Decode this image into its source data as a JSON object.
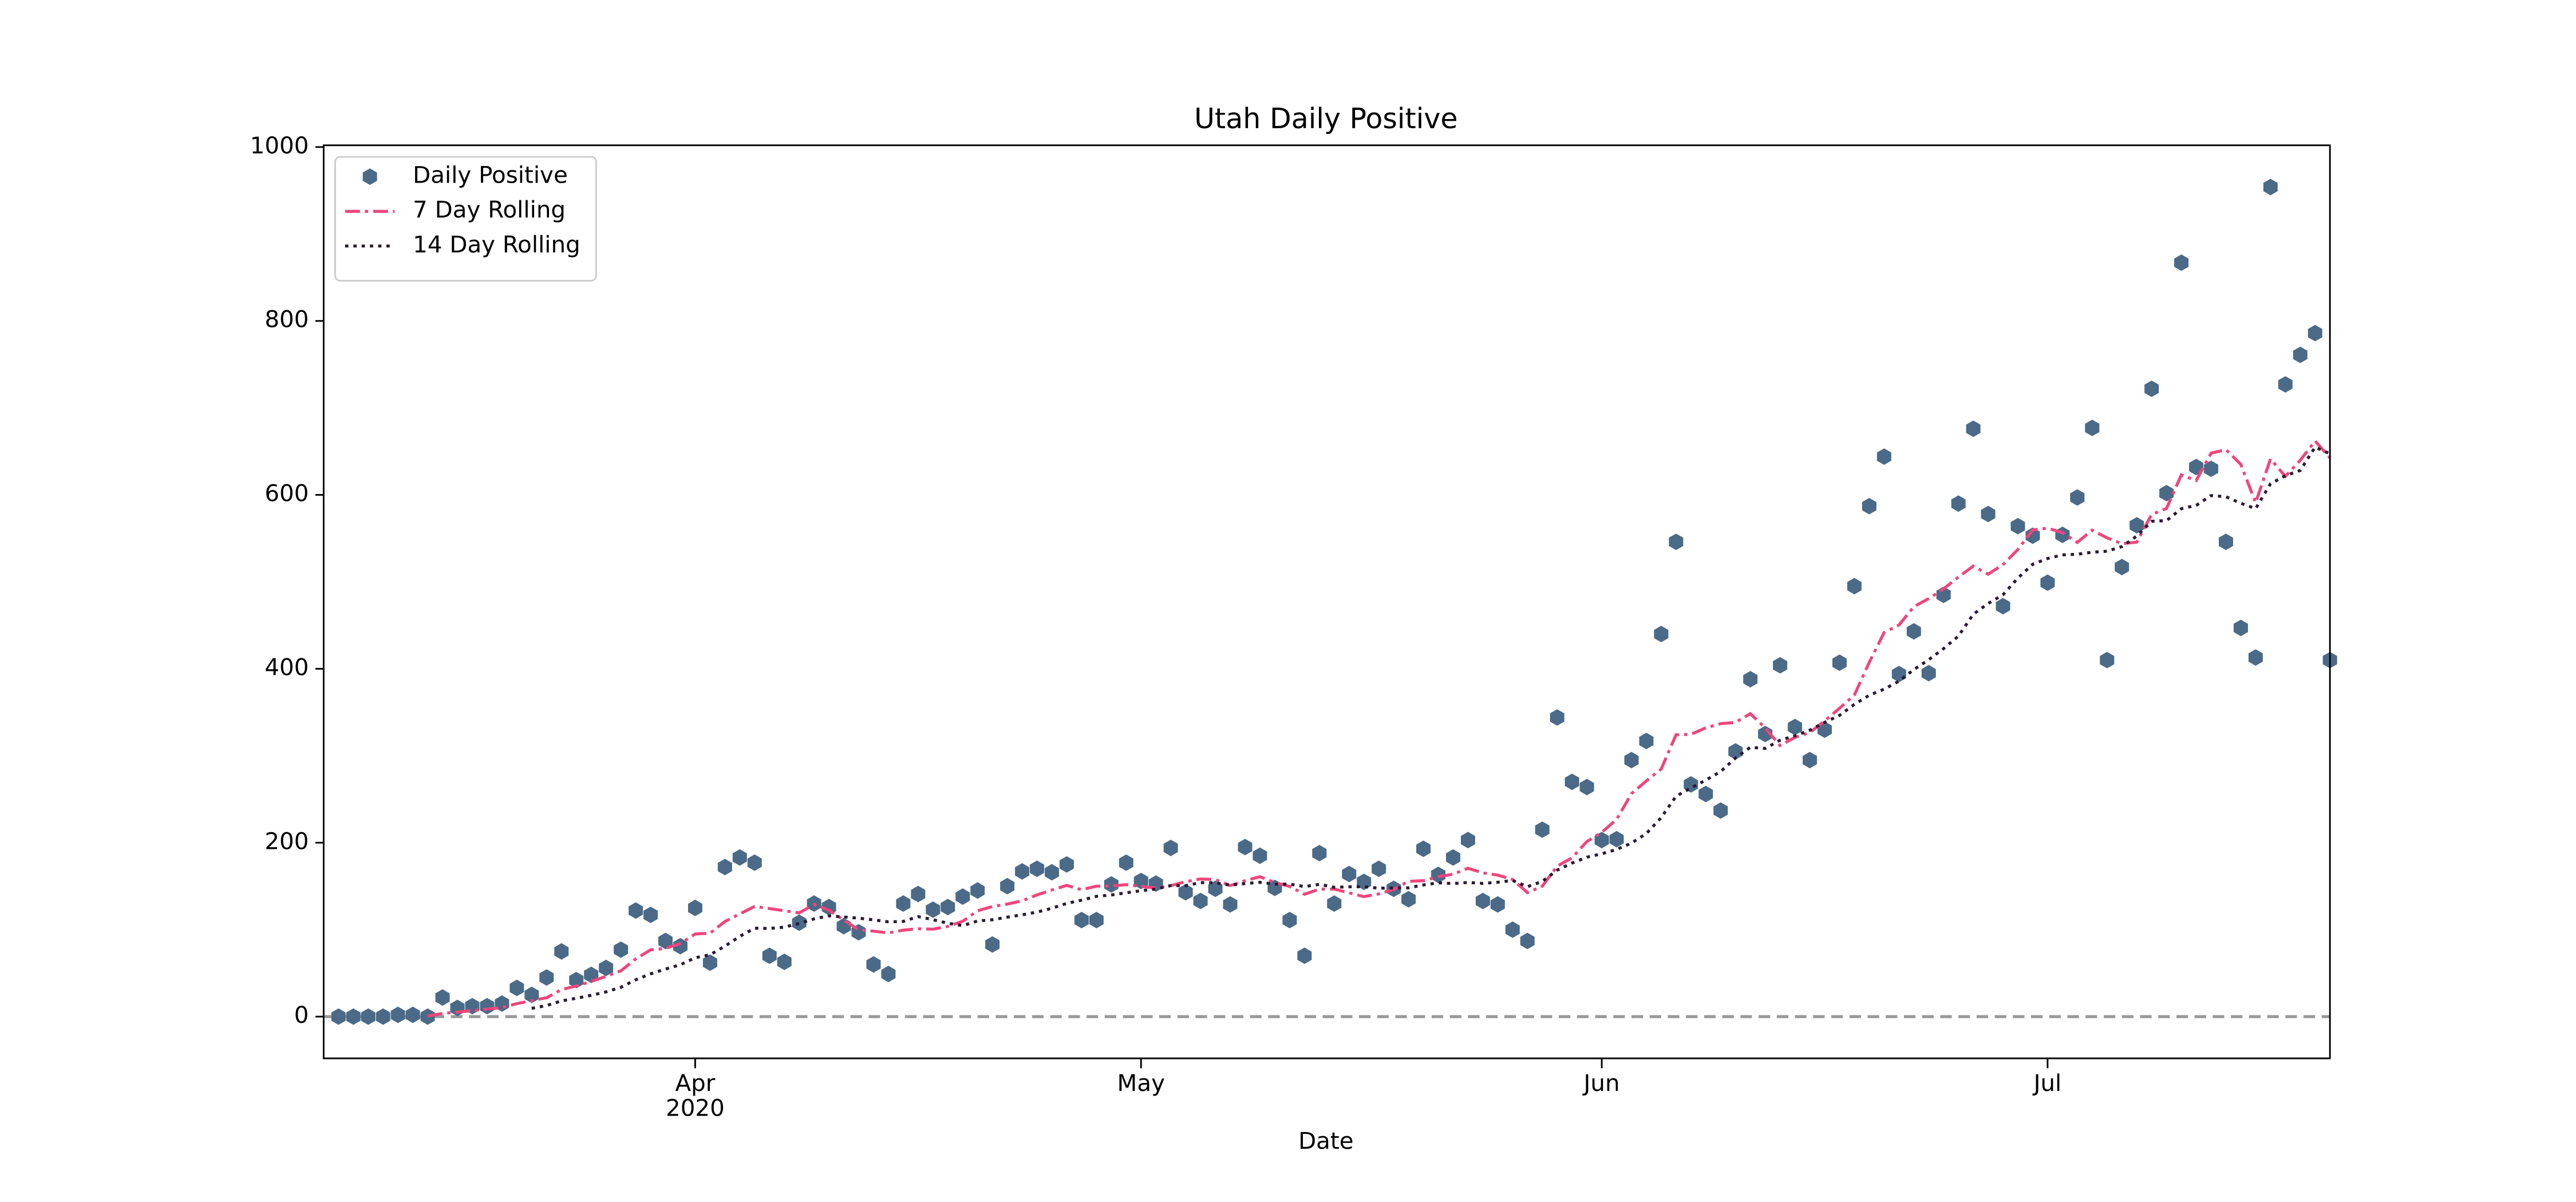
{
  "chart_data": {
    "type": "line",
    "title": "Utah Daily Positive",
    "xlabel": "Date",
    "x": [
      "2020-03-08",
      "2020-03-09",
      "2020-03-10",
      "2020-03-11",
      "2020-03-12",
      "2020-03-13",
      "2020-03-14",
      "2020-03-15",
      "2020-03-16",
      "2020-03-17",
      "2020-03-18",
      "2020-03-19",
      "2020-03-20",
      "2020-03-21",
      "2020-03-22",
      "2020-03-23",
      "2020-03-24",
      "2020-03-25",
      "2020-03-26",
      "2020-03-27",
      "2020-03-28",
      "2020-03-29",
      "2020-03-30",
      "2020-03-31",
      "2020-04-01",
      "2020-04-02",
      "2020-04-03",
      "2020-04-04",
      "2020-04-05",
      "2020-04-06",
      "2020-04-07",
      "2020-04-08",
      "2020-04-09",
      "2020-04-10",
      "2020-04-11",
      "2020-04-12",
      "2020-04-13",
      "2020-04-14",
      "2020-04-15",
      "2020-04-16",
      "2020-04-17",
      "2020-04-18",
      "2020-04-19",
      "2020-04-20",
      "2020-04-21",
      "2020-04-22",
      "2020-04-23",
      "2020-04-24",
      "2020-04-25",
      "2020-04-26",
      "2020-04-27",
      "2020-04-28",
      "2020-04-29",
      "2020-04-30",
      "2020-05-01",
      "2020-05-02",
      "2020-05-03",
      "2020-05-04",
      "2020-05-05",
      "2020-05-06",
      "2020-05-07",
      "2020-05-08",
      "2020-05-09",
      "2020-05-10",
      "2020-05-11",
      "2020-05-12",
      "2020-05-13",
      "2020-05-14",
      "2020-05-15",
      "2020-05-16",
      "2020-05-17",
      "2020-05-18",
      "2020-05-19",
      "2020-05-20",
      "2020-05-21",
      "2020-05-22",
      "2020-05-23",
      "2020-05-24",
      "2020-05-25",
      "2020-05-26",
      "2020-05-27",
      "2020-05-28",
      "2020-05-29",
      "2020-05-30",
      "2020-05-31",
      "2020-06-01",
      "2020-06-02",
      "2020-06-03",
      "2020-06-04",
      "2020-06-05",
      "2020-06-06",
      "2020-06-07",
      "2020-06-08",
      "2020-06-09",
      "2020-06-10",
      "2020-06-11",
      "2020-06-12",
      "2020-06-13",
      "2020-06-14",
      "2020-06-15",
      "2020-06-16",
      "2020-06-17",
      "2020-06-18",
      "2020-06-19",
      "2020-06-20",
      "2020-06-21",
      "2020-06-22",
      "2020-06-23",
      "2020-06-24",
      "2020-06-25",
      "2020-06-26",
      "2020-06-27",
      "2020-06-28",
      "2020-06-29",
      "2020-06-30",
      "2020-07-01",
      "2020-07-02",
      "2020-07-03",
      "2020-07-04",
      "2020-07-05",
      "2020-07-06",
      "2020-07-07",
      "2020-07-08",
      "2020-07-09",
      "2020-07-10",
      "2020-07-11",
      "2020-07-12",
      "2020-07-13",
      "2020-07-14",
      "2020-07-15",
      "2020-07-16",
      "2020-07-17",
      "2020-07-18",
      "2020-07-19",
      "2020-07-20"
    ],
    "series": [
      {
        "name": "Daily Positive",
        "kind": "scatter",
        "color": "#4a6a88",
        "values": [
          0,
          0,
          0,
          0,
          2,
          2,
          0,
          22,
          10,
          12,
          12,
          15,
          33,
          25,
          45,
          75,
          42,
          48,
          56,
          77,
          122,
          117,
          87,
          81,
          125,
          62,
          172,
          183,
          177,
          70,
          63,
          108,
          130,
          126,
          104,
          97,
          60,
          49,
          130,
          141,
          123,
          126,
          138,
          145,
          83,
          150,
          167,
          170,
          166,
          175,
          111,
          111,
          152,
          177,
          156,
          153,
          194,
          143,
          133,
          147,
          129,
          195,
          185,
          148,
          111,
          70,
          188,
          130,
          164,
          155,
          170,
          147,
          135,
          193,
          163,
          183,
          203,
          133,
          129,
          100,
          87,
          215,
          344,
          270,
          264,
          203,
          204,
          295,
          317,
          440,
          546,
          267,
          256,
          237,
          305,
          388,
          325,
          404,
          333,
          295,
          330,
          407,
          495,
          587,
          644,
          394,
          443,
          395,
          485,
          590,
          676,
          578,
          472,
          564,
          553,
          499,
          554,
          597,
          677,
          410,
          517,
          565,
          722,
          602,
          867,
          632,
          630,
          546,
          447,
          413,
          954,
          727,
          761,
          786,
          410
        ]
      },
      {
        "name": "7 Day Rolling",
        "kind": "line",
        "dash": "dashdot",
        "color": "#f0457a",
        "values": [
          null,
          null,
          null,
          null,
          null,
          null,
          0.6,
          3.7,
          5.1,
          6.9,
          8.6,
          10.4,
          14.9,
          18.4,
          21.7,
          31.0,
          35.3,
          40.4,
          46.3,
          52.6,
          66.4,
          76.7,
          78.4,
          84.0,
          95.0,
          95.9,
          109.4,
          118.1,
          126.7,
          124.3,
          121.7,
          119.3,
          129.0,
          122.4,
          111.1,
          99.7,
          98.3,
          96.3,
          99.4,
          101.0,
          100.6,
          103.7,
          109.6,
          121.7,
          126.6,
          129.4,
          133.1,
          139.9,
          145.6,
          150.9,
          146.0,
          150.0,
          150.3,
          151.7,
          149.7,
          147.9,
          150.6,
          155.1,
          158.3,
          157.6,
          150.7,
          156.3,
          160.9,
          154.3,
          149.7,
          140.7,
          146.6,
          146.7,
          142.3,
          138.0,
          141.1,
          146.3,
          155.6,
          156.3,
          161.0,
          163.7,
          170.6,
          165.3,
          162.7,
          157.7,
          142.6,
          150.0,
          173.0,
          182.6,
          201.3,
          211.9,
          226.7,
          256.4,
          271.0,
          284.7,
          324.1,
          324.6,
          332.1,
          336.9,
          338.3,
          348.4,
          332.0,
          311.7,
          321.1,
          326.7,
          340.0,
          354.6,
          369.9,
          407.3,
          441.6,
          450.3,
          471.4,
          480.7,
          491.9,
          505.4,
          518.1,
          508.7,
          519.9,
          537.1,
          559.7,
          561.7,
          556.6,
          545.3,
          559.4,
          550.6,
          543.9,
          545.6,
          577.4,
          584.3,
          622.9,
          616.4,
          647.9,
          652.0,
          635.1,
          591.0,
          641.3,
          621.3,
          639.7,
          662.0,
          642.6
        ]
      },
      {
        "name": "14 Day Rolling",
        "kind": "line",
        "dash": "dotted",
        "color": "#2a1a33",
        "values": [
          null,
          null,
          null,
          null,
          null,
          null,
          null,
          null,
          null,
          null,
          null,
          null,
          null,
          9.5,
          12.7,
          18.1,
          21.1,
          24.5,
          28.4,
          33.7,
          42.4,
          49.2,
          54.7,
          59.6,
          67.7,
          71.1,
          81.0,
          92.3,
          101.7,
          101.4,
          102.9,
          107.1,
          112.4,
          115.9,
          114.6,
          113.2,
          111.3,
          109.0,
          109.4,
          115.0,
          111.5,
          107.4,
          104.6,
          110.0,
          111.4,
          114.4,
          117.1,
          120.2,
          124.6,
          130.2,
          133.9,
          138.3,
          139.9,
          142.4,
          144.8,
          146.7,
          150.7,
          150.6,
          154.1,
          153.9,
          151.2,
          153.0,
          154.4,
          152.4,
          152.4,
          149.5,
          152.1,
          148.7,
          149.3,
          149.4,
          147.7,
          148.0,
          148.1,
          151.4,
          153.9,
          153.0,
          154.3,
          153.2,
          154.5,
          156.6,
          149.4,
          155.5,
          168.4,
          176.6,
          183.3,
          187.3,
          192.2,
          199.5,
          210.5,
          228.9,
          253.4,
          262.9,
          272.0,
          281.8,
          297.4,
          309.7,
          308.4,
          317.9,
          322.9,
          329.4,
          338.4,
          346.4,
          359.1,
          369.6,
          376.6,
          385.7,
          399.1,
          410.4,
          423.2,
          437.6,
          462.7,
          475.1,
          485.1,
          504.3,
          520.2,
          526.8,
          531.0,
          531.7,
          534.1,
          535.2,
          540.5,
          552.6,
          569.6,
          570.4,
          584.1,
          587.9,
          599.2,
          597.9,
          590.4,
          584.2,
          612.8,
          622.1,
          628.1,
          654.9,
          647.3
        ]
      }
    ],
    "xlim": [
      "2020-03-07",
      "2020-07-20"
    ],
    "xticks": [
      {
        "value": "2020-04-01",
        "label": "Apr"
      },
      {
        "value": "2020-05-01",
        "label": "May"
      },
      {
        "value": "2020-06-01",
        "label": "Jun"
      },
      {
        "value": "2020-07-01",
        "label": "Jul"
      }
    ],
    "xtick_sublabel": "2020",
    "ylim": [
      -48,
      1002
    ],
    "yticks": [
      0,
      200,
      400,
      600,
      800,
      1000
    ],
    "hline": 0,
    "legend": "upper left",
    "grid": false
  }
}
